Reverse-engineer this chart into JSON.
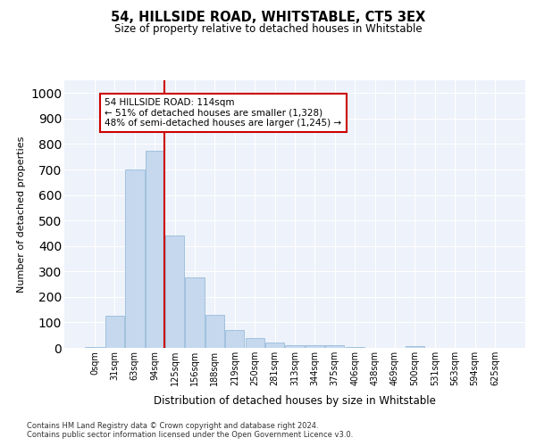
{
  "title": "54, HILLSIDE ROAD, WHITSTABLE, CT5 3EX",
  "subtitle": "Size of property relative to detached houses in Whitstable",
  "xlabel": "Distribution of detached houses by size in Whitstable",
  "ylabel": "Number of detached properties",
  "bar_color": "#c5d8ee",
  "bar_edge_color": "#8ab4d4",
  "background_color": "#eef2fa",
  "grid_color": "#ffffff",
  "categories": [
    "0sqm",
    "31sqm",
    "63sqm",
    "94sqm",
    "125sqm",
    "156sqm",
    "188sqm",
    "219sqm",
    "250sqm",
    "281sqm",
    "313sqm",
    "344sqm",
    "375sqm",
    "406sqm",
    "438sqm",
    "469sqm",
    "500sqm",
    "531sqm",
    "563sqm",
    "594sqm",
    "625sqm"
  ],
  "values": [
    5,
    127,
    700,
    775,
    440,
    275,
    130,
    70,
    37,
    22,
    10,
    10,
    10,
    5,
    0,
    0,
    8,
    0,
    0,
    0,
    0
  ],
  "ylim": [
    0,
    1050
  ],
  "yticks": [
    0,
    100,
    200,
    300,
    400,
    500,
    600,
    700,
    800,
    900,
    1000
  ],
  "property_line_color": "#cc0000",
  "annotation_text": "54 HILLSIDE ROAD: 114sqm\n← 51% of detached houses are smaller (1,328)\n48% of semi-detached houses are larger (1,245) →",
  "annotation_box_color": "#ffffff",
  "annotation_box_edge": "#cc0000",
  "footer_line1": "Contains HM Land Registry data © Crown copyright and database right 2024.",
  "footer_line2": "Contains public sector information licensed under the Open Government Licence v3.0."
}
